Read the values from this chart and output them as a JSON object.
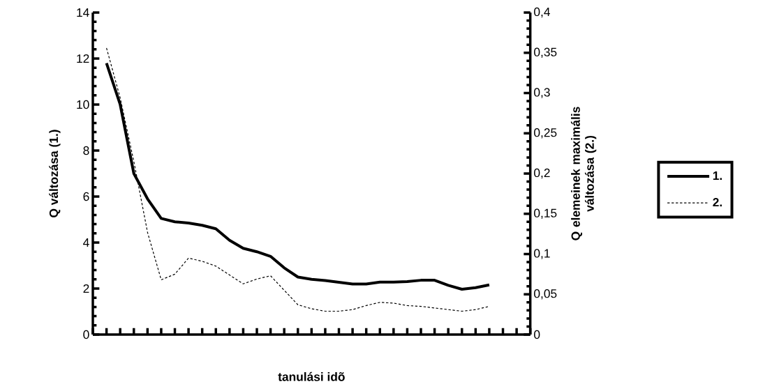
{
  "chart_data": {
    "type": "line",
    "xlabel": "tanulási idõ",
    "ylabel": "Q változása (1.)",
    "y2label": "Q elemeinek maximális változása  (2.)",
    "categories": [
      null,
      null,
      null,
      null,
      null,
      null,
      null,
      null,
      null,
      null,
      null,
      null,
      null,
      null,
      null,
      null,
      null,
      null,
      null,
      null,
      null,
      null,
      null,
      null,
      null,
      null,
      null,
      null,
      null,
      null,
      null,
      null,
      null
    ],
    "series": [
      {
        "name": "1.",
        "color": "#000000",
        "line_style": "solid",
        "values": [
          null,
          11.8,
          10.0,
          7.0,
          5.9,
          5.05,
          4.9,
          4.85,
          4.75,
          4.6,
          4.1,
          3.75,
          3.6,
          3.4,
          2.9,
          2.5,
          2.4,
          2.35,
          2.27,
          2.2,
          2.2,
          2.28,
          2.28,
          2.3,
          2.36,
          2.36,
          2.14,
          1.97,
          2.04,
          2.16,
          null,
          null,
          null
        ]
      },
      {
        "name": "2.",
        "color": "#000000",
        "line_style": "dashed",
        "axis": "y2",
        "values": [
          null,
          0.356,
          0.294,
          0.215,
          0.127,
          0.068,
          0.075,
          0.095,
          0.091,
          0.085,
          0.074,
          0.063,
          0.069,
          0.073,
          0.055,
          0.037,
          0.032,
          0.029,
          0.029,
          0.031,
          0.036,
          0.04,
          0.039,
          0.036,
          0.035,
          0.033,
          0.031,
          0.029,
          0.031,
          0.035,
          null,
          null,
          null
        ]
      }
    ],
    "ylim": [
      0,
      14
    ],
    "yticks": [
      0,
      2,
      4,
      6,
      8,
      10,
      12,
      14
    ],
    "y2lim": [
      0,
      0.4
    ],
    "y2ticks": [
      0,
      {
        "value": 0.05,
        "label": "0,05"
      },
      {
        "value": 0.1,
        "label": "0,1"
      },
      {
        "value": 0.15,
        "label": "0,15"
      },
      {
        "value": 0.2,
        "label": "0,2"
      },
      {
        "value": 0.25,
        "label": "0,25"
      },
      {
        "value": 0.3,
        "label": "0,3"
      },
      {
        "value": 0.35,
        "label": "0,35"
      },
      {
        "value": 0.4,
        "label": "0,4"
      }
    ],
    "legend": "right",
    "tick_labels": "y",
    "marker": "none"
  }
}
